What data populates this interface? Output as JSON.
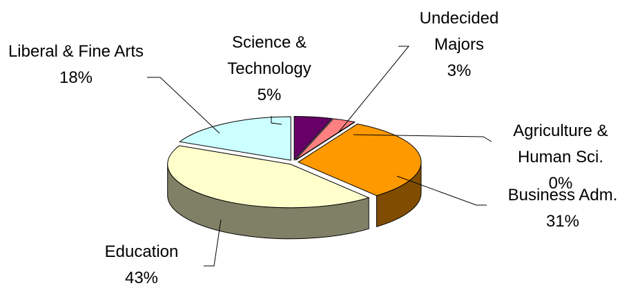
{
  "chart_data": {
    "type": "pie",
    "categories": [
      "Science & Technology",
      "Undecided Majors",
      "Agriculture & Human Sci.",
      "Business Adm.",
      "Education",
      "Liberal & Fine Arts"
    ],
    "values": [
      5,
      3,
      0,
      31,
      43,
      18
    ],
    "value_labels": [
      "5%",
      "3%",
      "0%",
      "31%",
      "43%",
      "18%"
    ],
    "colors": [
      "#660066",
      "#ff8080",
      "#3366cc",
      "#ff9900",
      "#ffffcc",
      "#ccffff"
    ]
  }
}
